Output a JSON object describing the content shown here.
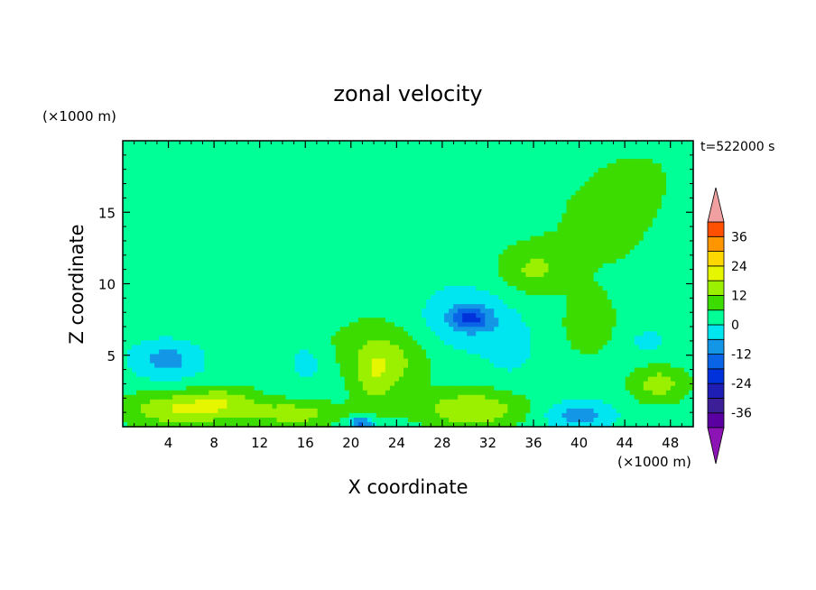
{
  "chart_data": {
    "type": "heatmap",
    "title": "zonal velocity",
    "xlabel": "X coordinate",
    "ylabel": "Z coordinate",
    "x_unit": "(×1000 m)",
    "y_unit": "(×1000 m)",
    "time_label": "t=522000 s",
    "xlim": [
      0,
      50
    ],
    "ylim": [
      0,
      20
    ],
    "x_ticks": [
      4,
      8,
      12,
      16,
      20,
      24,
      28,
      32,
      36,
      40,
      44,
      48
    ],
    "y_ticks": [
      5,
      10,
      15
    ],
    "colorbar": {
      "levels": [
        -42,
        -36,
        -30,
        -24,
        -18,
        -12,
        -6,
        0,
        6,
        12,
        18,
        24,
        30,
        36,
        42
      ],
      "labels": [
        -36,
        -24,
        -12,
        0,
        12,
        24,
        36
      ],
      "colors": [
        "#5a00a0",
        "#3c1e96",
        "#1e1eb4",
        "#0032dc",
        "#0a64e6",
        "#1496e6",
        "#00e6f0",
        "#00ff96",
        "#3cdc00",
        "#9bf000",
        "#e6f500",
        "#ffd700",
        "#ff9600",
        "#ff5000",
        "#f01414"
      ],
      "under_color": "#8c14b4",
      "over_color": "#f0a0a0"
    },
    "field": {
      "background": 3,
      "blobs": [
        {
          "x": 42,
          "y": 14,
          "sx": 7,
          "sy": 5,
          "a": 3.8
        },
        {
          "x": 46,
          "y": 18,
          "sx": 5,
          "sy": 3,
          "a": 2
        },
        {
          "x": 36,
          "y": 11,
          "sx": 3,
          "sy": 1.6,
          "a": 9
        },
        {
          "x": 41,
          "y": 7,
          "sx": 2.2,
          "sy": 2,
          "a": 8
        },
        {
          "x": 8,
          "y": 6,
          "sx": 9,
          "sy": 2.5,
          "a": 3
        },
        {
          "x": 22,
          "y": 6,
          "sx": 6,
          "sy": 2.5,
          "a": 3
        },
        {
          "x": 4,
          "y": 4.8,
          "sx": 3.5,
          "sy": 1.5,
          "a": -13
        },
        {
          "x": 16,
          "y": 4.5,
          "sx": 1.5,
          "sy": 1.2,
          "a": -8
        },
        {
          "x": 30,
          "y": 7.5,
          "sx": 4,
          "sy": 2.2,
          "a": -10
        },
        {
          "x": 30.5,
          "y": 7.6,
          "sx": 1.6,
          "sy": 0.7,
          "a": -15
        },
        {
          "x": 34,
          "y": 5.5,
          "sx": 2,
          "sy": 1.8,
          "a": -6
        },
        {
          "x": 46,
          "y": 6,
          "sx": 3,
          "sy": 1.5,
          "a": -4
        },
        {
          "x": 5,
          "y": 1.2,
          "sx": 5,
          "sy": 1.2,
          "a": 15
        },
        {
          "x": 9,
          "y": 1.8,
          "sx": 3,
          "sy": 1,
          "a": 8
        },
        {
          "x": 15,
          "y": 0.9,
          "sx": 4,
          "sy": 0.9,
          "a": 12
        },
        {
          "x": 22,
          "y": 3.5,
          "sx": 2,
          "sy": 2.5,
          "a": 10
        },
        {
          "x": 24,
          "y": 4.5,
          "sx": 3,
          "sy": 2,
          "a": 7
        },
        {
          "x": 30.5,
          "y": 1.2,
          "sx": 4.5,
          "sy": 1.3,
          "a": 15
        },
        {
          "x": 47,
          "y": 3,
          "sx": 2.5,
          "sy": 1.3,
          "a": 12
        },
        {
          "x": 40,
          "y": 0.8,
          "sx": 3,
          "sy": 1,
          "a": -12
        },
        {
          "x": 21,
          "y": 0.3,
          "sx": 1,
          "sy": 0.4,
          "a": -20
        }
      ]
    }
  }
}
